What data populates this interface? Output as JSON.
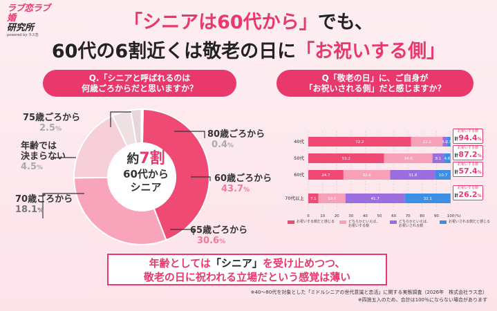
{
  "logo": {
    "line1": "ラブ恋ラブ婚",
    "line2": "研究所",
    "sub": "powered by ラス恋"
  },
  "headline": {
    "line1_pink": "「シニアは60代から」",
    "line1_dark": "でも、",
    "line2_dark": "60代の6割近くは敬老の日に",
    "line2_pink": "「お祝いする側」"
  },
  "questions": {
    "q1_line1": "Q.「シニアと呼ばれるのは",
    "q1_line2": "何歳ごろからだと思いますか？",
    "q2_line1": "Q「敬老の日」に、ご自身が",
    "q2_line2": "「お祝いされる側」だと感じますか？"
  },
  "pie_center": {
    "pre": "約",
    "num": "7割",
    "line2": "60代から",
    "line3": "シニア"
  },
  "pie_labels": {
    "a80": "80歳ごろから",
    "a80v": "0.4",
    "a60": "60歳ごろから",
    "a60v": "43.7",
    "a65": "65歳ごろから",
    "a65v": "30.6",
    "a70": "70歳ごろから",
    "a70v": "18.1",
    "free1": "年齢では",
    "free2": "決まらない",
    "freev": "4.5",
    "a75": "75歳ごろから",
    "a75v": "2.5",
    "pct": "%"
  },
  "chart_data": [
    {
      "type": "pie",
      "title": "Q.「シニアと呼ばれるのは何歳ごろからだと思いますか？",
      "slices": [
        {
          "label": "60歳ごろから",
          "value": 43.7,
          "color": "#ee4a74"
        },
        {
          "label": "65歳ごろから",
          "value": 30.6,
          "color": "#f8a5bb"
        },
        {
          "label": "70歳ごろから",
          "value": 18.1,
          "color": "#f6cfd8"
        },
        {
          "label": "年齢では決まらない",
          "value": 4.5,
          "color": "#efe0e3"
        },
        {
          "label": "75歳ごろから",
          "value": 2.5,
          "color": "#e6d6da"
        },
        {
          "label": "80歳ごろから",
          "value": 0.4,
          "color": "#ffffff"
        }
      ]
    },
    {
      "type": "bar",
      "stacked": true,
      "orientation": "horizontal",
      "title": "Q「敬老の日」に、ご自身が「お祝いされる側」だと感じますか？",
      "categories": [
        "40代",
        "50代",
        "60代",
        "70代以上"
      ],
      "series": [
        {
          "name": "お祝いする側だと感じる",
          "values": [
            72.2,
            53.2,
            24.7,
            7.1
          ],
          "color": "#ee4a74"
        },
        {
          "name": "どちらかといえば、お祝いする側",
          "values": [
            22.2,
            34.0,
            32.8,
            19.0
          ],
          "color": "#f7a1b8"
        },
        {
          "name": "どちらかといえば、お祝いされる側",
          "values": [
            3.0,
            8.1,
            31.8,
            41.7
          ],
          "color": "#9b6ee0"
        },
        {
          "name": "お祝いされる側だと感じる",
          "values": [
            2.5,
            4.6,
            10.7,
            32.1
          ],
          "color": "#3d8fe6"
        }
      ],
      "xlim": [
        0,
        100
      ],
      "xticks": [
        "0",
        "10",
        "20",
        "30",
        "40",
        "50",
        "60",
        "70",
        "80",
        "90",
        "100"
      ],
      "x_unit": "(%)",
      "totals": [
        {
          "label": "お祝いする側",
          "prefix": "計",
          "value": "94.4",
          "unit": "%"
        },
        {
          "label": "お祝いする側",
          "prefix": "計",
          "value": "87.2",
          "unit": "%"
        },
        {
          "label": "お祝いする側",
          "prefix": "計",
          "value": "57.4",
          "unit": "%"
        },
        {
          "label": "お祝いする側",
          "prefix": "計",
          "value": "26.2",
          "unit": "%"
        }
      ]
    }
  ],
  "legend": [
    {
      "l1": "お祝いする側だと感じる",
      "l2": ""
    },
    {
      "l1": "どちらかといえば、",
      "l2": "お祝いする側"
    },
    {
      "l1": "どちらかといえば、",
      "l2": "お祝いされる側"
    },
    {
      "l1": "お祝いされる側だと感じる",
      "l2": ""
    }
  ],
  "bottom": {
    "line1_a": "年齢としては",
    "line1_b": "「シニア」",
    "line1_c": "を受け止めつつ、",
    "line2": "敬老の日に祝われる立場だという感覚は薄い"
  },
  "notes": {
    "n1": "※40〜80代を対象とした「ミドルシニアの世代意識と恋活」に関する実態調査（2026年　株式会社ラス恋）",
    "n2": "※四捨五入のため、合計は100％にならない場合があります"
  }
}
